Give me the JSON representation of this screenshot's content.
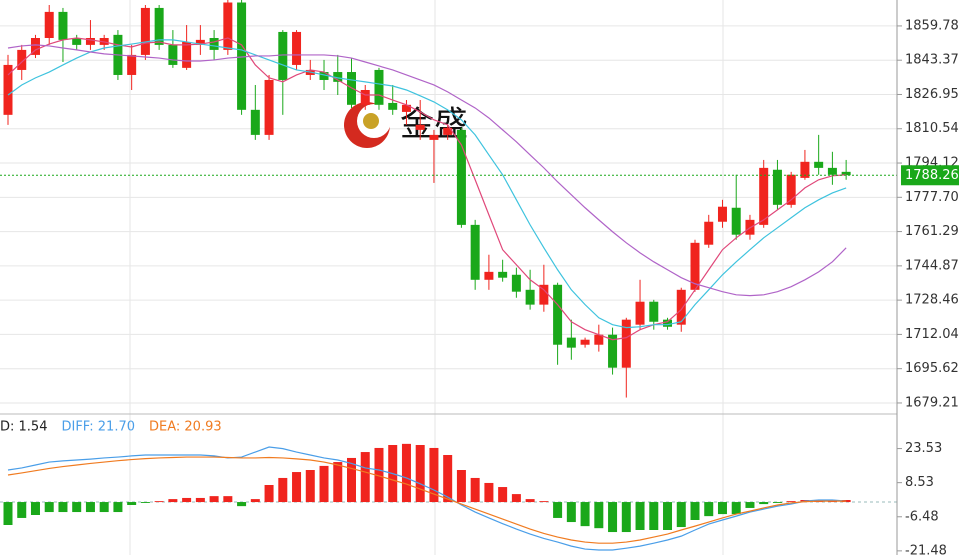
{
  "chart_data": [
    {
      "type": "candlestick",
      "watermark": "金盛",
      "up_color": "#f0241e",
      "down_color": "#1aa81a",
      "open": [
        1817.2,
        1838.7,
        1845.9,
        1854.0,
        1866.5,
        1854.0,
        1850.7,
        1850.7,
        1855.5,
        1836.3,
        1845.9,
        1868.4,
        1850.7,
        1839.7,
        1850.7,
        1854.0,
        1848.3,
        1871.0,
        1819.6,
        1807.6,
        1856.9,
        1841.1,
        1836.3,
        1837.7,
        1837.7,
        1837.7,
        1822.0,
        1838.7,
        1822.9,
        1818.6,
        1810.0,
        1805.2,
        1807.6,
        1810.0,
        1764.5,
        1738.2,
        1742.0,
        1740.6,
        1733.4,
        1726.3,
        1735.8,
        1710.5,
        1707.1,
        1707.1,
        1711.9,
        1696.1,
        1716.7,
        1727.7,
        1719.1,
        1716.7,
        1733.4,
        1755.0,
        1766.0,
        1772.7,
        1759.8,
        1764.5,
        1790.9,
        1774.1,
        1787.0,
        1794.7,
        1791.8,
        1789.9
      ],
      "high": [
        1845.9,
        1850.7,
        1855.5,
        1869.8,
        1868.4,
        1855.5,
        1862.6,
        1855.5,
        1857.8,
        1850.7,
        1869.8,
        1869.8,
        1857.8,
        1860.2,
        1860.2,
        1857.8,
        1878,
        1878,
        1831.5,
        1836.3,
        1857.8,
        1857.8,
        1843.5,
        1843.5,
        1845.9,
        1844.4,
        1831.5,
        1839.7,
        1831.5,
        1824.3,
        1824.3,
        1810.0,
        1812.4,
        1811.0,
        1766.9,
        1750.2,
        1747.8,
        1744.0,
        1743.0,
        1745.4,
        1736.8,
        1719.1,
        1710.5,
        1716.7,
        1715.3,
        1720.0,
        1738.2,
        1728.6,
        1720.0,
        1734.4,
        1757.4,
        1769.3,
        1776.5,
        1788.5,
        1769.3,
        1795.6,
        1795.6,
        1789.9,
        1800.4,
        1807.6,
        1799.5,
        1795.6
      ],
      "low": [
        1812.4,
        1833.9,
        1844.4,
        1850.7,
        1842.5,
        1848.3,
        1848.3,
        1848.3,
        1833.9,
        1829.1,
        1843.5,
        1848.3,
        1839.7,
        1838.7,
        1845.9,
        1843.5,
        1845.9,
        1817.2,
        1805.2,
        1805.2,
        1817.2,
        1838.7,
        1833.9,
        1829.1,
        1826.7,
        1820.5,
        1819.6,
        1819.6,
        1817.2,
        1812.4,
        1805.2,
        1784.6,
        1805.2,
        1763.1,
        1733.4,
        1733.4,
        1737.3,
        1729.6,
        1723.9,
        1722.9,
        1697.5,
        1699.9,
        1705.7,
        1703.8,
        1692.8,
        1681.8,
        1714.3,
        1714.3,
        1714.3,
        1713.3,
        1732.5,
        1753.5,
        1763.1,
        1757.4,
        1757.4,
        1763.1,
        1771.7,
        1772.7,
        1786.1,
        1788.5,
        1783.7,
        1786.1
      ],
      "close": [
        1841.1,
        1848.3,
        1854.0,
        1866.5,
        1853.1,
        1850.7,
        1854.0,
        1854.0,
        1836.3,
        1845.9,
        1868.4,
        1850.7,
        1841.1,
        1852.1,
        1853.1,
        1848.3,
        1871.0,
        1819.6,
        1807.6,
        1833.9,
        1833.9,
        1856.9,
        1838.7,
        1833.9,
        1833.0,
        1822.0,
        1829.1,
        1822.0,
        1819.6,
        1822.0,
        1812.4,
        1807.6,
        1811.0,
        1764.5,
        1738.2,
        1742.0,
        1739.2,
        1732.5,
        1726.3,
        1735.8,
        1707.1,
        1705.7,
        1709.5,
        1711.9,
        1696.1,
        1719.1,
        1727.7,
        1718.1,
        1715.7,
        1733.4,
        1755.9,
        1766.0,
        1773.2,
        1759.8,
        1766.9,
        1791.8,
        1774.1,
        1788.5,
        1794.7,
        1791.8,
        1788.5,
        1788.3
      ],
      "series": [
        {
          "color": "#e0487a",
          "values": [
            1836.3,
            1842.5,
            1848.3,
            1851.1,
            1853.1,
            1854.0,
            1853.1,
            1852.1,
            1850.7,
            1849.7,
            1851.6,
            1852.1,
            1850.7,
            1850.7,
            1851.1,
            1852.1,
            1854.0,
            1850.7,
            1841.1,
            1834.9,
            1833.0,
            1836.3,
            1838.7,
            1837.7,
            1833.9,
            1830.1,
            1826.7,
            1826.7,
            1824.3,
            1822.0,
            1818.6,
            1814.8,
            1812.4,
            1802.8,
            1786.1,
            1769.3,
            1752.6,
            1745.4,
            1738.2,
            1733.4,
            1726.3,
            1718.1,
            1714.3,
            1711.9,
            1709.5,
            1710.5,
            1714.3,
            1716.7,
            1718.1,
            1723.9,
            1733.4,
            1743.0,
            1752.6,
            1758.3,
            1763.1,
            1766.9,
            1771.7,
            1776.5,
            1782.2,
            1786.1,
            1788.0,
            1788.5
          ]
        },
        {
          "color": "#3ec3de",
          "values": [
            1826.7,
            1831.5,
            1834.9,
            1837.7,
            1841.1,
            1844.4,
            1847.3,
            1849.2,
            1850.2,
            1851.1,
            1852.1,
            1853.1,
            1853.1,
            1852.1,
            1851.1,
            1850.2,
            1849.2,
            1848.3,
            1845.9,
            1843.5,
            1841.1,
            1838.7,
            1837.7,
            1836.3,
            1834.9,
            1833.9,
            1833.0,
            1832.0,
            1831.0,
            1829.1,
            1826.3,
            1823.4,
            1819.6,
            1814.8,
            1807.6,
            1798.0,
            1788.5,
            1776.5,
            1764.5,
            1753.5,
            1743.0,
            1733.4,
            1726.3,
            1720.0,
            1716.7,
            1715.3,
            1715.7,
            1716.7,
            1716.7,
            1718.1,
            1726.3,
            1733.4,
            1740.6,
            1746.8,
            1752.6,
            1758.3,
            1763.1,
            1767.9,
            1772.7,
            1776.5,
            1779.8,
            1782.2
          ]
        },
        {
          "color": "#b064c8",
          "values": [
            1849.2,
            1850.2,
            1850.7,
            1850.2,
            1849.2,
            1848.3,
            1847.3,
            1846.4,
            1845.9,
            1845.4,
            1844.9,
            1844.4,
            1843.5,
            1843.0,
            1843.0,
            1843.5,
            1844.4,
            1844.9,
            1845.4,
            1845.4,
            1845.9,
            1845.9,
            1845.9,
            1845.9,
            1845.4,
            1844.4,
            1842.5,
            1840.6,
            1838.7,
            1836.3,
            1833.9,
            1831.5,
            1828.2,
            1824.3,
            1820.5,
            1815.7,
            1810.0,
            1804.3,
            1798.0,
            1791.8,
            1785.1,
            1778.9,
            1772.7,
            1766.9,
            1761.2,
            1755.9,
            1751.1,
            1746.8,
            1743.0,
            1739.2,
            1736.3,
            1734.4,
            1732.5,
            1731.0,
            1730.6,
            1731.0,
            1732.5,
            1734.9,
            1738.2,
            1742.0,
            1746.8,
            1753.5
          ]
        }
      ],
      "last_price": 1788.26,
      "last_price_color": "#1aa81a",
      "ylim": [
        1674.4,
        1872.2
      ],
      "yticks": [
        1859.78,
        1843.37,
        1826.95,
        1810.54,
        1794.12,
        {
          "value": 1777.7,
          "label": "1777.70"
        },
        1761.29,
        1744.87,
        1728.46,
        1712.04,
        1695.62,
        1679.21
      ],
      "grid": true
    },
    {
      "type": "macd",
      "legend": [
        {
          "label": "D: 1.54",
          "color": "#222222"
        },
        {
          "label": "DIFF: 21.70",
          "color": "#4a9ee8"
        },
        {
          "label": "DEA: 20.93",
          "color": "#f07b20"
        }
      ],
      "up_color": "#f0241e",
      "down_color": "#1aa81a",
      "histogram": [
        -10.1,
        -7.0,
        -5.7,
        -4.4,
        -4.4,
        -4.4,
        -4.4,
        -4.4,
        -4.4,
        -1.3,
        -0.4,
        0.4,
        1.3,
        1.8,
        1.8,
        2.6,
        2.6,
        -1.8,
        1.3,
        7.5,
        10.6,
        13.2,
        14.1,
        15.9,
        17.6,
        19.4,
        22.0,
        23.8,
        25.1,
        25.6,
        25.1,
        23.8,
        20.7,
        14.1,
        10.6,
        8.4,
        6.6,
        3.5,
        1.3,
        0.4,
        -7.0,
        -8.8,
        -10.6,
        -11.5,
        -13.2,
        -13.2,
        -12.3,
        -12.3,
        -12.3,
        -11.0,
        -7.9,
        -6.2,
        -5.3,
        -5.3,
        -2.6,
        -0.9,
        -0.4,
        0.4,
        0.9,
        0.9,
        0.9,
        0.9
      ],
      "series": [
        {
          "color": "#4a9ee8",
          "values": [
            14.1,
            15.0,
            16.3,
            17.6,
            18.1,
            18.5,
            18.9,
            19.4,
            19.8,
            20.3,
            20.7,
            20.7,
            20.7,
            20.7,
            20.7,
            20.3,
            19.4,
            19.8,
            22.0,
            24.2,
            23.5,
            22.0,
            20.7,
            19.4,
            18.5,
            17.0,
            15.0,
            14.1,
            12.5,
            10.6,
            8.0,
            5.3,
            2.2,
            -1.3,
            -4.4,
            -7.0,
            -9.5,
            -11.9,
            -14.1,
            -16.0,
            -17.6,
            -19.4,
            -20.7,
            -21.1,
            -21.1,
            -20.3,
            -19.4,
            -18.1,
            -16.7,
            -15.0,
            -12.3,
            -9.7,
            -7.9,
            -6.2,
            -4.4,
            -3.1,
            -1.8,
            -0.9,
            0.4,
            0.9,
            0.9,
            0.4
          ]
        },
        {
          "color": "#f07b20",
          "values": [
            11.9,
            12.8,
            13.8,
            14.8,
            15.6,
            16.3,
            17.0,
            17.6,
            18.2,
            18.7,
            19.1,
            19.4,
            19.6,
            19.8,
            19.8,
            19.8,
            19.6,
            19.4,
            19.4,
            19.6,
            19.4,
            19.0,
            18.5,
            17.6,
            16.3,
            14.8,
            13.2,
            11.5,
            9.7,
            7.9,
            5.7,
            3.5,
            1.3,
            -0.9,
            -3.1,
            -5.3,
            -7.5,
            -9.7,
            -11.9,
            -13.8,
            -15.4,
            -16.7,
            -17.6,
            -18.1,
            -18.1,
            -17.6,
            -16.7,
            -15.4,
            -14.1,
            -12.3,
            -10.6,
            -8.8,
            -7.0,
            -5.3,
            -4.0,
            -2.6,
            -1.3,
            -0.4,
            0.2,
            0.4,
            0.4,
            0.4
          ]
        }
      ],
      "ylim": [
        -23.3,
        38.3
      ],
      "yticks": [
        23.53,
        8.53,
        -6.48,
        -21.48
      ]
    }
  ]
}
